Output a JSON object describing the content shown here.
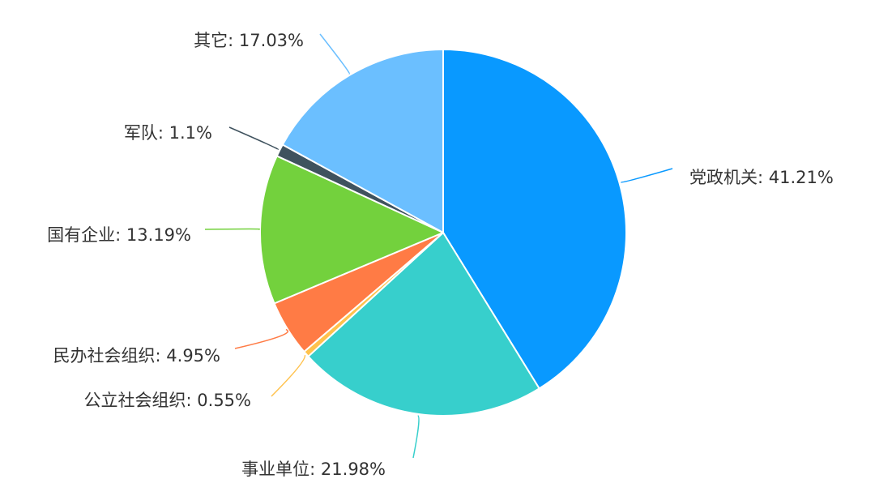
{
  "chart_data": {
    "type": "pie",
    "title": "",
    "legend": "none",
    "slices": [
      {
        "name": "党政机关",
        "value": 41.21,
        "label": "41.21%",
        "color": "#0999ff"
      },
      {
        "name": "事业单位",
        "value": 21.98,
        "label": "21.98%",
        "color": "#37cfcc"
      },
      {
        "name": "公立社会组织",
        "value": 0.55,
        "label": "0.55%",
        "color": "#ffc24d"
      },
      {
        "name": "民办社会组织",
        "value": 4.95,
        "label": "4.95%",
        "color": "#ff7b45"
      },
      {
        "name": "国有企业",
        "value": 13.19,
        "label": "13.19%",
        "color": "#73d13d"
      },
      {
        "name": "军队",
        "value": 1.1,
        "label": "1.1%",
        "color": "#3f525e"
      },
      {
        "name": "其它",
        "value": 17.03,
        "label": "17.03%",
        "color": "#6bbfff"
      }
    ]
  }
}
